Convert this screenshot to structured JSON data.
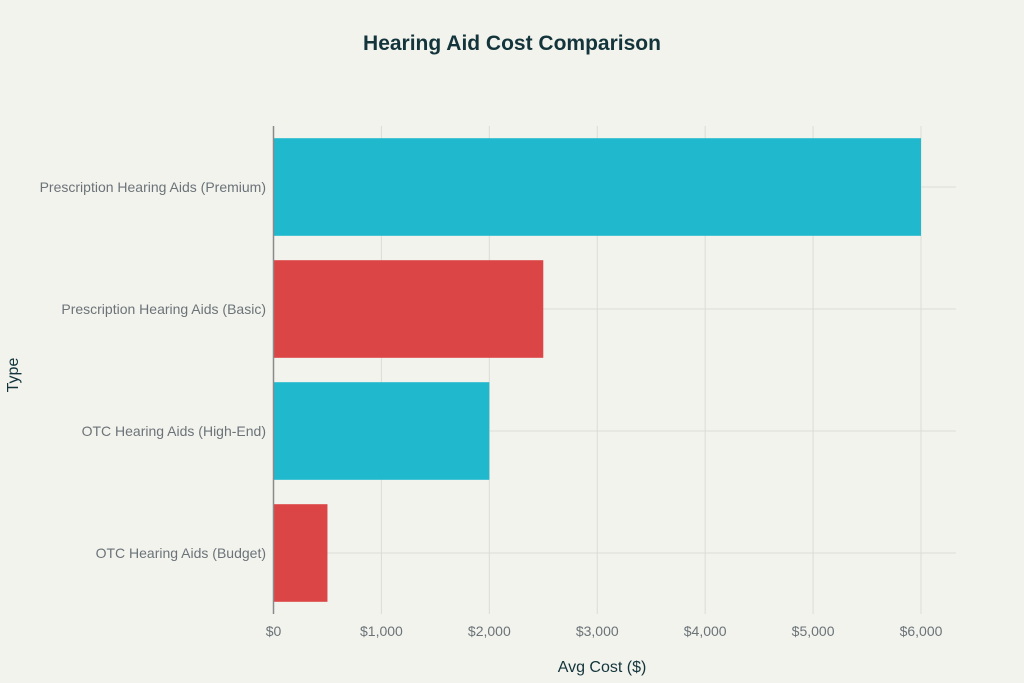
{
  "chart_data": {
    "type": "bar",
    "orientation": "horizontal",
    "title": "Hearing Aid Cost Comparison",
    "xlabel": "Avg Cost ($)",
    "ylabel": "Type",
    "categories": [
      "Prescription Hearing Aids (Premium)",
      "Prescription Hearing Aids (Basic)",
      "OTC Hearing Aids (High-End)",
      "OTC Hearing Aids (Budget)"
    ],
    "values": [
      6000,
      2500,
      2000,
      500
    ],
    "bar_colors": [
      "#1fb8cd",
      "#db4545",
      "#1fb8cd",
      "#db4545"
    ],
    "xlim": [
      0,
      6300
    ],
    "xticks": [
      0,
      1000,
      2000,
      3000,
      4000,
      5000,
      6000
    ],
    "xtick_labels": [
      "$0",
      "$1,000",
      "$2,000",
      "$3,000",
      "$4,000",
      "$5,000",
      "$6,000"
    ],
    "grid": true,
    "legend": "none"
  }
}
